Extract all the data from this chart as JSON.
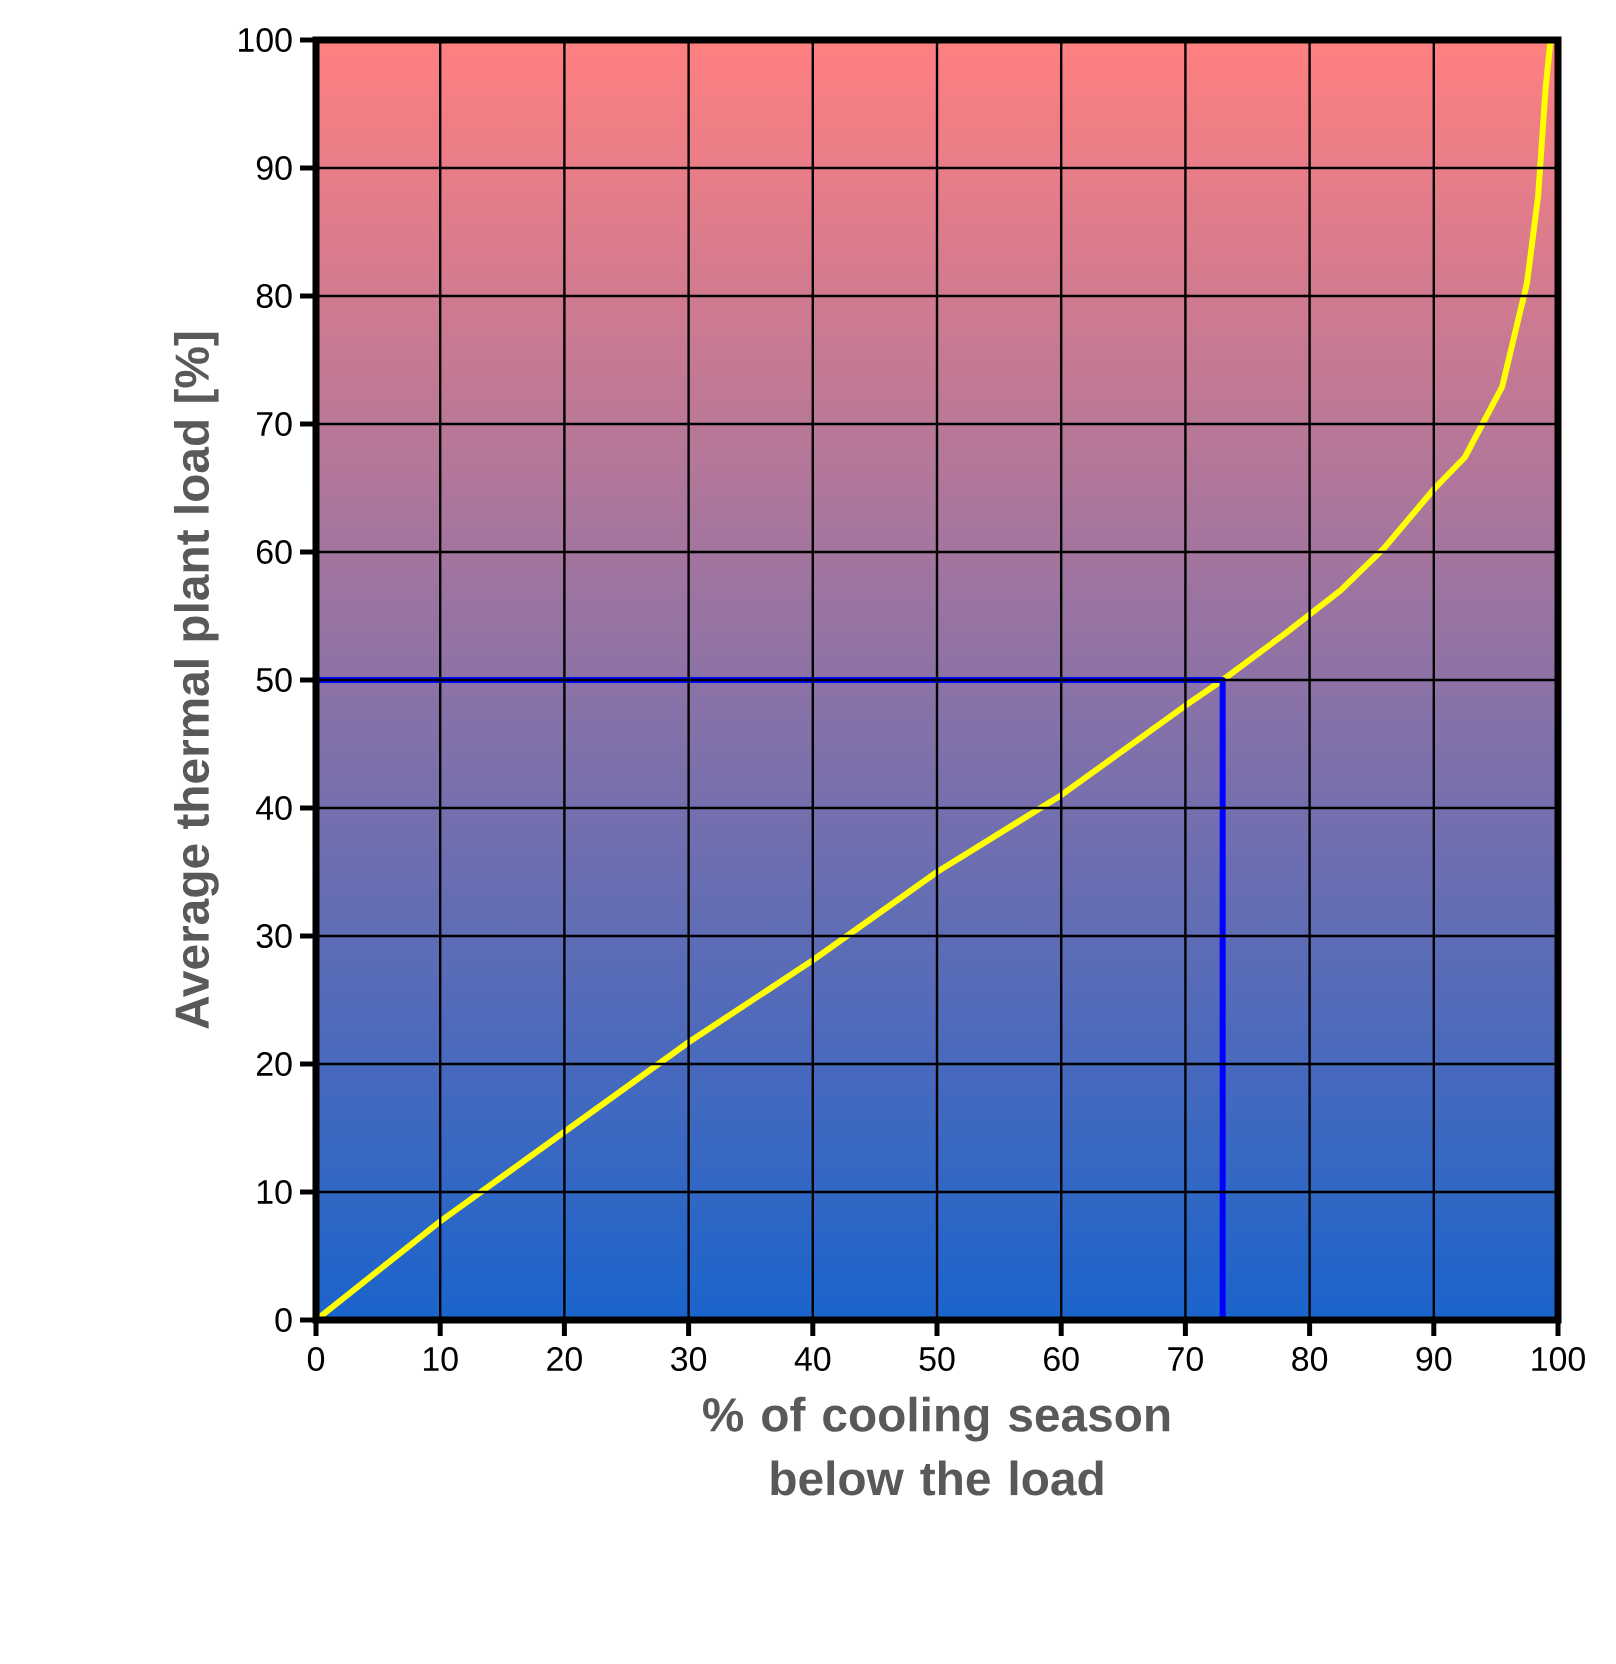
{
  "chart_data": {
    "type": "line",
    "xlabel": "% of cooling season below the load",
    "ylabel": "Average thermal plant load [%]",
    "xlim": [
      0,
      100
    ],
    "ylim": [
      0,
      100
    ],
    "xticks": [
      0,
      10,
      20,
      30,
      40,
      50,
      60,
      70,
      80,
      90,
      100
    ],
    "yticks": [
      0,
      10,
      20,
      30,
      40,
      50,
      60,
      70,
      80,
      90,
      100
    ],
    "grid": true,
    "series": [
      {
        "color": "#ffff00",
        "x": [
          0,
          10,
          20,
          30,
          40,
          50,
          60,
          70,
          73,
          78,
          82.5,
          86,
          90,
          92.5,
          95.5,
          97.5,
          98.4,
          99,
          99.4
        ],
        "values": [
          0,
          7.7,
          14.7,
          21.7,
          28.1,
          35,
          41,
          48,
          50,
          53.6,
          57,
          60.3,
          64.9,
          67.4,
          72.9,
          81,
          87.8,
          96.2,
          100
        ]
      },
      {
        "color": "#0000ff",
        "x": [
          0,
          73,
          73
        ],
        "values": [
          50,
          50,
          0
        ]
      }
    ]
  }
}
